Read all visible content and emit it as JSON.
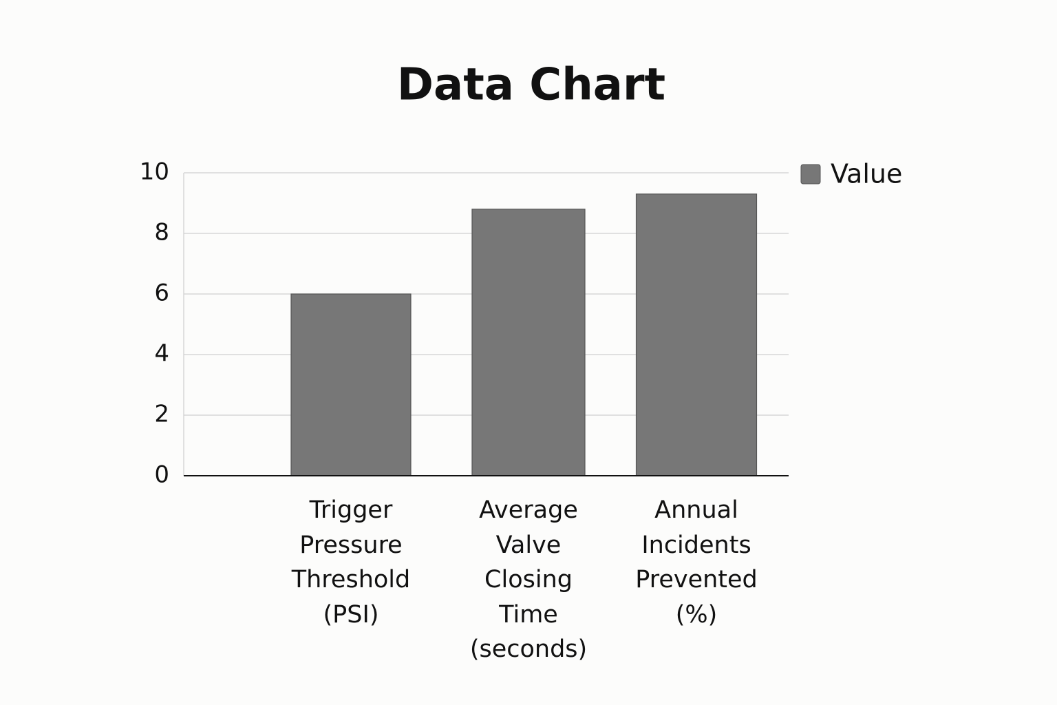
{
  "chart_data": {
    "type": "bar",
    "title": "Data Chart",
    "categories": [
      "Trigger Pressure Threshold (PSI)",
      "Average Valve Closing Time (seconds)",
      "Annual Incidents Prevented (%)"
    ],
    "series": [
      {
        "name": "Value",
        "color": "#777777",
        "values": [
          6.0,
          8.8,
          9.3
        ]
      }
    ],
    "ylim": [
      0,
      10
    ],
    "yticks": [
      0,
      2,
      4,
      6,
      8,
      10
    ],
    "grid": true,
    "legend": "right"
  }
}
